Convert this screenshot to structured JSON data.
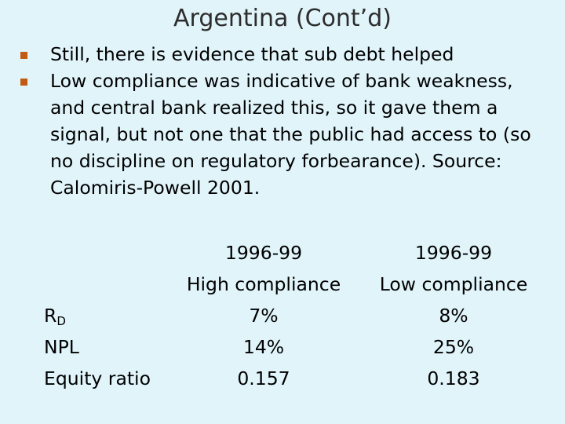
{
  "title": "Argentina (Cont’d)",
  "bullets": [
    "Still, there is evidence that sub debt helped",
    "Low compliance was indicative of bank weakness, and central bank realized this, so it gave them a signal, but not one that the public had access to (so no discipline on regulatory forbearance). Source: Calomiris-Powell 2001."
  ],
  "table": {
    "row_labels": {
      "rd_main": "R",
      "rd_sub": "D",
      "npl": "NPL",
      "equity": "Equity ratio"
    },
    "columns": [
      {
        "period": "1996-99",
        "group": "High compliance",
        "rd": "7%",
        "npl": "14%",
        "equity": "0.157"
      },
      {
        "period": "1996-99",
        "group": "Low compliance",
        "rd": "8%",
        "npl": "25%",
        "equity": "0.183"
      }
    ]
  },
  "colors": {
    "background": "#e0f4fa",
    "bullet": "#c25a12",
    "title": "#2d2d2d"
  }
}
